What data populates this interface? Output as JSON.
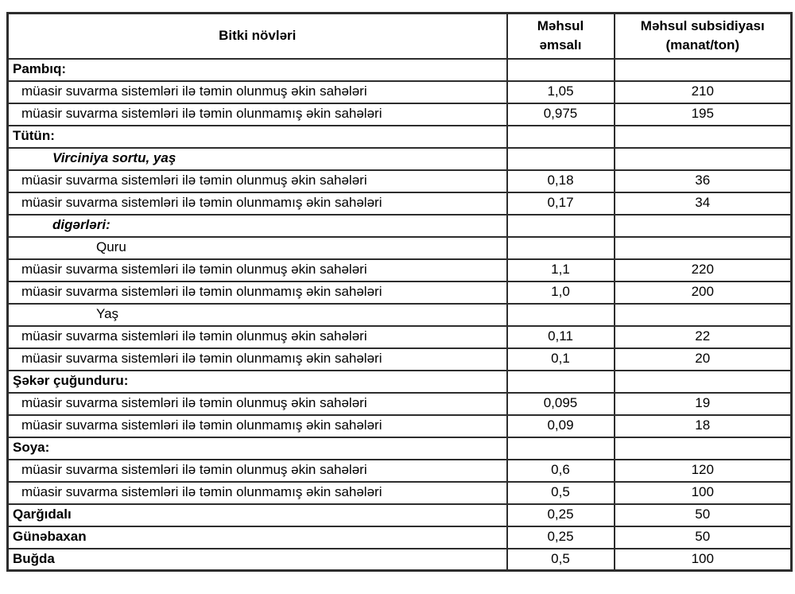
{
  "table": {
    "header": {
      "col1": "Bitki növləri",
      "col2": "Məhsul\nəmsalı",
      "col3": "Məhsul subsidiyası\n(manat/ton)"
    },
    "rows": [
      {
        "label": "Pambıq:",
        "coeff": "",
        "subsidy": ""
      },
      {
        "label": "müasir suvarma sistemləri ilə təmin olunmuş əkin sahələri",
        "coeff": "1,05",
        "subsidy": "210"
      },
      {
        "label": "müasir suvarma sistemləri ilə təmin olunmamış əkin sahələri",
        "coeff": "0,975",
        "subsidy": "195"
      },
      {
        "label": "Tütün:",
        "coeff": "",
        "subsidy": ""
      },
      {
        "label": "Virciniya sortu, yaş",
        "coeff": "",
        "subsidy": ""
      },
      {
        "label": "müasir suvarma sistemləri ilə təmin olunmuş əkin sahələri",
        "coeff": "0,18",
        "subsidy": "36"
      },
      {
        "label": "müasir suvarma sistemləri ilə təmin olunmamış əkin sahələri",
        "coeff": "0,17",
        "subsidy": "34"
      },
      {
        "label": "digərləri:",
        "coeff": "",
        "subsidy": ""
      },
      {
        "label": "Quru",
        "coeff": "",
        "subsidy": ""
      },
      {
        "label": "müasir suvarma sistemləri ilə təmin olunmuş əkin sahələri",
        "coeff": "1,1",
        "subsidy": "220"
      },
      {
        "label": "müasir suvarma sistemləri ilə təmin olunmamış əkin sahələri",
        "coeff": "1,0",
        "subsidy": "200"
      },
      {
        "label": "Yaş",
        "coeff": "",
        "subsidy": ""
      },
      {
        "label": "müasir suvarma sistemləri ilə təmin olunmuş əkin sahələri",
        "coeff": "0,11",
        "subsidy": "22"
      },
      {
        "label": "müasir suvarma sistemləri ilə təmin olunmamış əkin sahələri",
        "coeff": "0,1",
        "subsidy": "20"
      },
      {
        "label": "Şəkər çuğunduru:",
        "coeff": "",
        "subsidy": ""
      },
      {
        "label": "müasir suvarma sistemləri ilə təmin olunmuş əkin sahələri",
        "coeff": "0,095",
        "subsidy": "19"
      },
      {
        "label": "müasir suvarma sistemləri ilə təmin olunmamış əkin sahələri",
        "coeff": "0,09",
        "subsidy": "18"
      },
      {
        "label": "Soya:",
        "coeff": "",
        "subsidy": ""
      },
      {
        "label": "müasir suvarma sistemləri ilə təmin olunmuş əkin sahələri",
        "coeff": "0,6",
        "subsidy": "120"
      },
      {
        "label": "müasir suvarma sistemləri ilə təmin olunmamış əkin sahələri",
        "coeff": "0,5",
        "subsidy": "100"
      },
      {
        "label": "Qarğıdalı",
        "coeff": "0,25",
        "subsidy": "50"
      },
      {
        "label": "Günəbaxan",
        "coeff": "0,25",
        "subsidy": "50"
      },
      {
        "label": "Buğda",
        "coeff": "0,5",
        "subsidy": "100"
      }
    ]
  }
}
